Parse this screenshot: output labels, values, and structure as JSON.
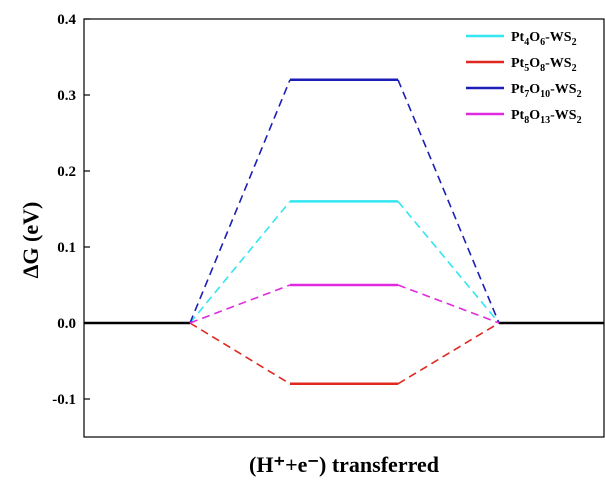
{
  "chart_data": {
    "type": "line",
    "ylabel": "ΔG (eV)",
    "xlabel": "(H⁺+e⁻) transferred",
    "ylim": [
      -0.15,
      0.4
    ],
    "yticks": [
      {
        "value": -0.1,
        "label": "-0.1"
      },
      {
        "value": 0.0,
        "label": "0.0"
      },
      {
        "value": 0.1,
        "label": "0.1"
      },
      {
        "value": 0.2,
        "label": "0.2"
      },
      {
        "value": 0.3,
        "label": "0.3"
      },
      {
        "value": 0.4,
        "label": "0.4"
      }
    ],
    "xticks_visible": false,
    "legend_position": "top-right",
    "baseline": {
      "value": 0.0,
      "color": "#000000"
    },
    "series": [
      {
        "name": "Pt4O6-WS2",
        "metal_sub": "4",
        "oxygen_sub": "6",
        "color": "#33e6f0",
        "value": 0.16
      },
      {
        "name": "Pt5O8-WS2",
        "metal_sub": "5",
        "oxygen_sub": "8",
        "color": "#e0281e",
        "value": -0.08
      },
      {
        "name": "Pt7O10-WS2",
        "metal_sub": "7",
        "oxygen_sub": "10",
        "color": "#1d1db8",
        "value": 0.32
      },
      {
        "name": "Pt8O13-WS2",
        "metal_sub": "8",
        "oxygen_sub": "13",
        "color": "#e02ae0",
        "value": 0.05
      }
    ]
  }
}
